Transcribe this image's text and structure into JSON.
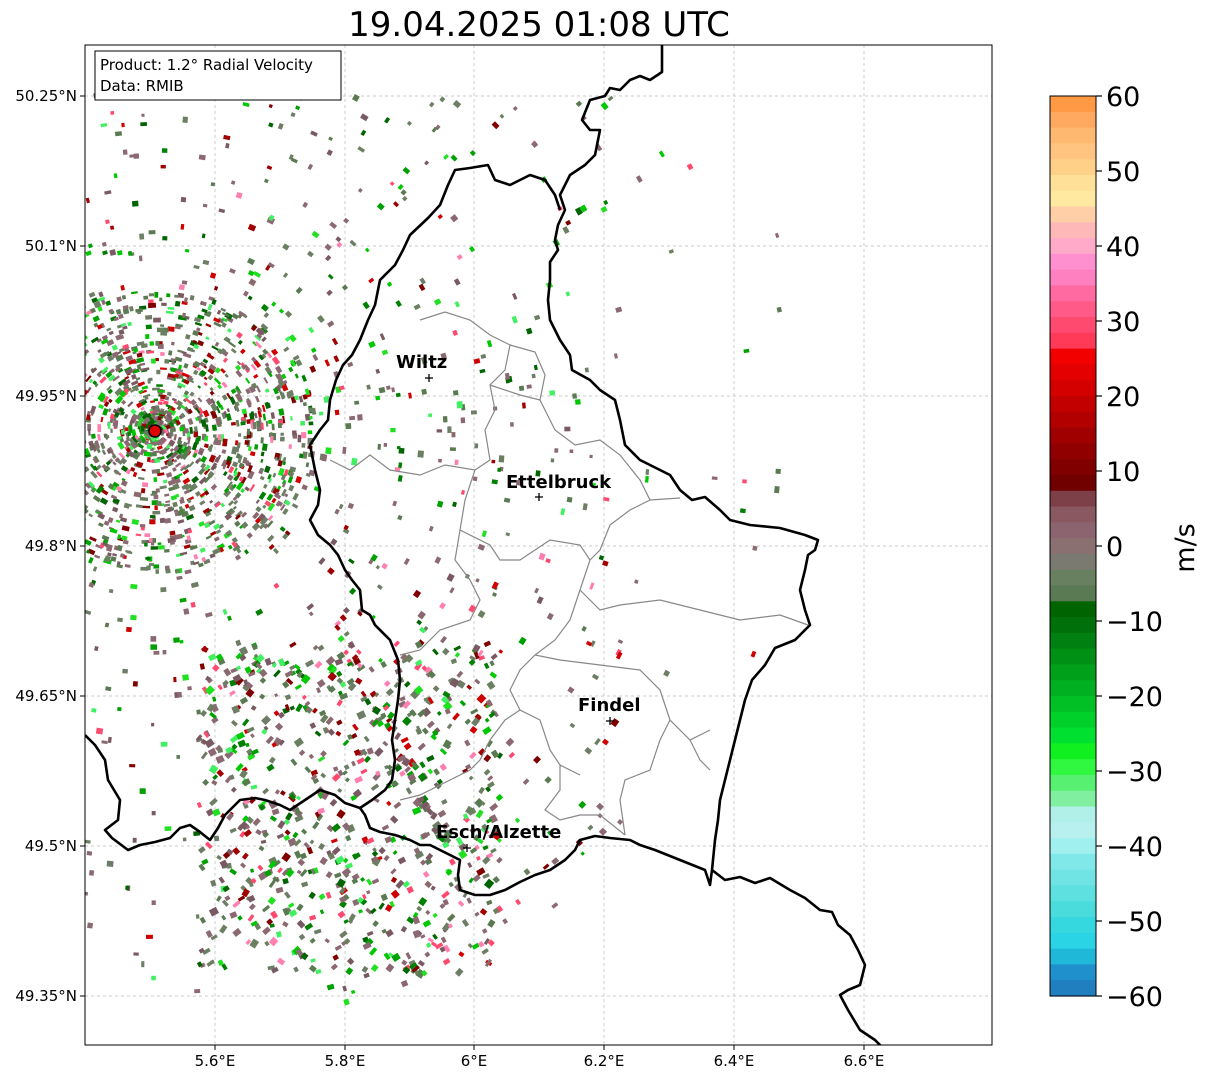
{
  "title": "19.04.2025 01:08 UTC",
  "info_box": {
    "product": "Product: 1.2° Radial Velocity",
    "data": "Data: RMIB"
  },
  "lat_labels": [
    "50.25°N",
    "50.1°N",
    "49.95°N",
    "49.8°N",
    "49.65°N",
    "49.5°N",
    "49.35°N"
  ],
  "lon_labels": [
    "5.6°E",
    "5.8°E",
    "6°E",
    "6.2°E",
    "6.4°E",
    "6.6°E"
  ],
  "cities": [
    {
      "name": "Wiltz"
    },
    {
      "name": "Ettelbruck"
    },
    {
      "name": "Findel"
    },
    {
      "name": "Esch/Alzette"
    }
  ],
  "colorbar": {
    "label": "m/s",
    "tick_labels": [
      "60",
      "50",
      "40",
      "30",
      "20",
      "10",
      "0",
      "−10",
      "−20",
      "−30",
      "−40",
      "−50",
      "−60"
    ],
    "range": [
      -60,
      60
    ]
  },
  "colors": {
    "border": "#000000",
    "district_lines": "#888888",
    "radar_site": "#e00000",
    "grid": "#bbbbbb"
  }
}
